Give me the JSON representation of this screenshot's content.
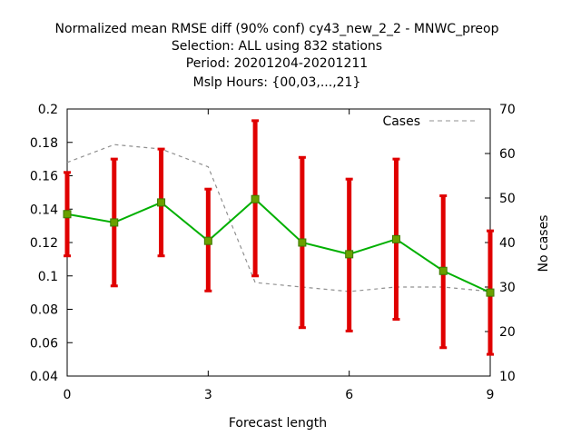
{
  "chart_data": {
    "type": "line",
    "title_lines": [
      "Normalized mean RMSE diff (90% conf) cy43_new_2_2 - MNWC_preop",
      "Selection: ALL using   832 stations",
      "Period: 20201204-20201211",
      "Mslp   Hours: {00,03,...,21}"
    ],
    "xlabel": "Forecast length",
    "ylabel": "",
    "y2label": "No cases",
    "xlim": [
      0,
      9
    ],
    "ylim": [
      0.04,
      0.2
    ],
    "y2lim": [
      10,
      70
    ],
    "x_ticks": [
      0,
      3,
      6,
      9
    ],
    "x_tick_labels": [
      "0",
      "3",
      "6",
      "9"
    ],
    "y_ticks": [
      0.04,
      0.06,
      0.08,
      0.1,
      0.12,
      0.14,
      0.16,
      0.18,
      0.2
    ],
    "y_tick_labels": [
      "0.04",
      "0.06",
      "0.08",
      "0.1",
      "0.12",
      "0.14",
      "0.16",
      "0.18",
      "0.2"
    ],
    "y2_ticks": [
      10,
      20,
      30,
      40,
      50,
      60,
      70
    ],
    "y2_tick_labels": [
      "10",
      "20",
      "30",
      "40",
      "50",
      "60",
      "70"
    ],
    "grid": false,
    "legend_position": "top-right",
    "series": [
      {
        "kind": "mean_with_errorbars",
        "color": "#00b000",
        "marker_color": "#6aa000",
        "errorbar_color": "#e00000",
        "x": [
          0,
          1,
          2,
          3,
          4,
          5,
          6,
          7,
          8,
          9
        ],
        "y": [
          0.137,
          0.132,
          0.144,
          0.121,
          0.146,
          0.12,
          0.113,
          0.122,
          0.103,
          0.09
        ],
        "y_low": [
          0.112,
          0.094,
          0.112,
          0.091,
          0.1,
          0.069,
          0.067,
          0.074,
          0.057,
          0.053
        ],
        "y_high": [
          0.162,
          0.17,
          0.176,
          0.152,
          0.193,
          0.171,
          0.158,
          0.17,
          0.148,
          0.127
        ]
      },
      {
        "name": "Cases",
        "kind": "cases",
        "axis": "y2",
        "color": "#909090",
        "dash": true,
        "x": [
          0,
          1,
          2,
          3,
          4,
          5,
          6,
          7,
          8,
          9
        ],
        "y": [
          58,
          62,
          61,
          57,
          31,
          30,
          29,
          30,
          30,
          29
        ]
      }
    ]
  }
}
